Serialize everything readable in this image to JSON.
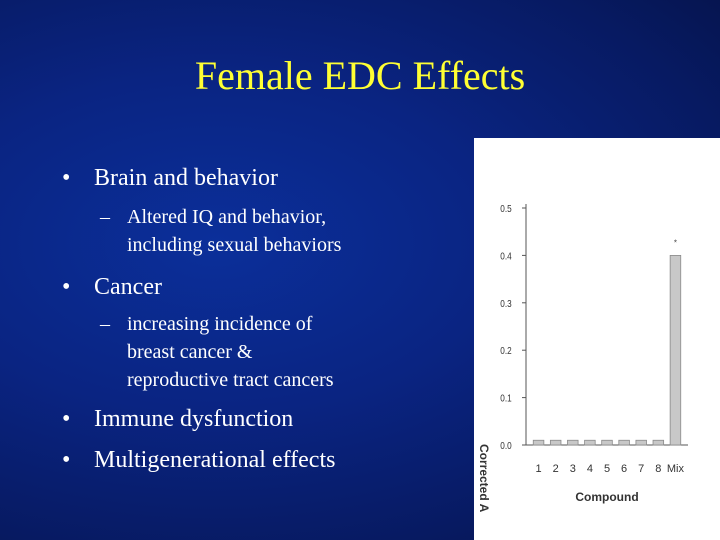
{
  "slide": {
    "title": "Female EDC Effects",
    "bullets": [
      {
        "text": "Brain and behavior",
        "sub": [
          "Altered IQ and behavior,",
          "including sexual behaviors"
        ]
      },
      {
        "text": "Cancer",
        "sub": [
          "increasing incidence of",
          "breast cancer &",
          "reproductive tract cancers"
        ]
      },
      {
        "text": "Immune dysfunction"
      },
      {
        "text": "Multigenerational effects"
      }
    ],
    "bullet_glyph": "•",
    "dash_glyph": "–"
  },
  "colors": {
    "title": "#ffff33",
    "text": "#ffffff",
    "background": "#0a2482",
    "bar": "#c8c8c8"
  },
  "chart_data": {
    "type": "bar",
    "categories": [
      "1",
      "2",
      "3",
      "4",
      "5",
      "6",
      "7",
      "8",
      "Mix"
    ],
    "values": [
      0.01,
      0.01,
      0.01,
      0.01,
      0.01,
      0.01,
      0.01,
      0.01,
      0.4
    ],
    "xlabel": "Compound",
    "ylabel": "Corrected A",
    "ylim": [
      0,
      0.5
    ],
    "yticks": [
      "0.0",
      "0.1",
      "0.2",
      "0.3",
      "0.4",
      "0.5"
    ],
    "annotations": [
      {
        "category": "Mix",
        "text": "*"
      }
    ],
    "grid": false,
    "legend": "none"
  }
}
